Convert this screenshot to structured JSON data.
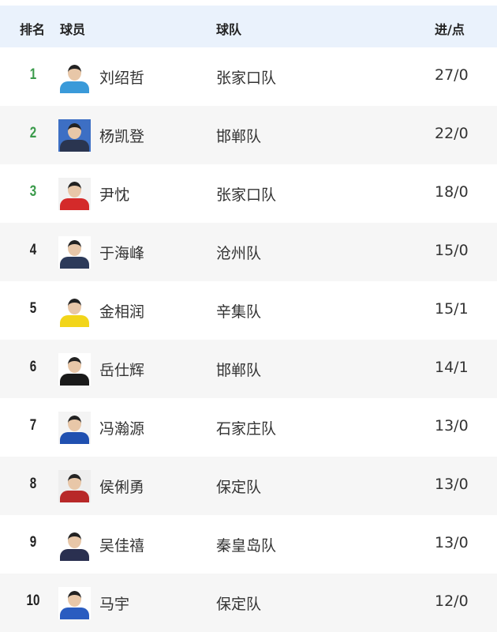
{
  "header": {
    "rank": "排名",
    "player": "球员",
    "team": "球队",
    "goals": "进/点"
  },
  "colors": {
    "top3_rank": "#3a9a4a",
    "header_bg": "#eaf2fc",
    "alt_row": "#f6f6f6"
  },
  "rows": [
    {
      "rank": "1",
      "name": "刘绍哲",
      "team": "张家口队",
      "score": "27/0",
      "bg": "#ffffff",
      "shirt": "#3a9ad9"
    },
    {
      "rank": "2",
      "name": "杨凯登",
      "team": "邯郸队",
      "score": "22/0",
      "bg": "#3d6fc4",
      "shirt": "#2a3550"
    },
    {
      "rank": "3",
      "name": "尹忱",
      "team": "张家口队",
      "score": "18/0",
      "bg": "#f2f2f2",
      "shirt": "#d42a2a"
    },
    {
      "rank": "4",
      "name": "于海峰",
      "team": "沧州队",
      "score": "15/0",
      "bg": "#ffffff",
      "shirt": "#2c3a5a"
    },
    {
      "rank": "5",
      "name": "金相润",
      "team": "辛集队",
      "score": "15/1",
      "bg": "#ffffff",
      "shirt": "#f2d51a"
    },
    {
      "rank": "6",
      "name": "岳仕辉",
      "team": "邯郸队",
      "score": "14/1",
      "bg": "#ffffff",
      "shirt": "#1a1a1a"
    },
    {
      "rank": "7",
      "name": "冯瀚源",
      "team": "石家庄队",
      "score": "13/0",
      "bg": "#f4f4f4",
      "shirt": "#2050b0"
    },
    {
      "rank": "8",
      "name": "侯俐勇",
      "team": "保定队",
      "score": "13/0",
      "bg": "#eeeeee",
      "shirt": "#b82828"
    },
    {
      "rank": "9",
      "name": "吴佳禧",
      "team": "秦皇岛队",
      "score": "13/0",
      "bg": "#ffffff",
      "shirt": "#2a3050"
    },
    {
      "rank": "10",
      "name": "马宇",
      "team": "保定队",
      "score": "12/0",
      "bg": "#ffffff",
      "shirt": "#2a5cc0"
    }
  ]
}
